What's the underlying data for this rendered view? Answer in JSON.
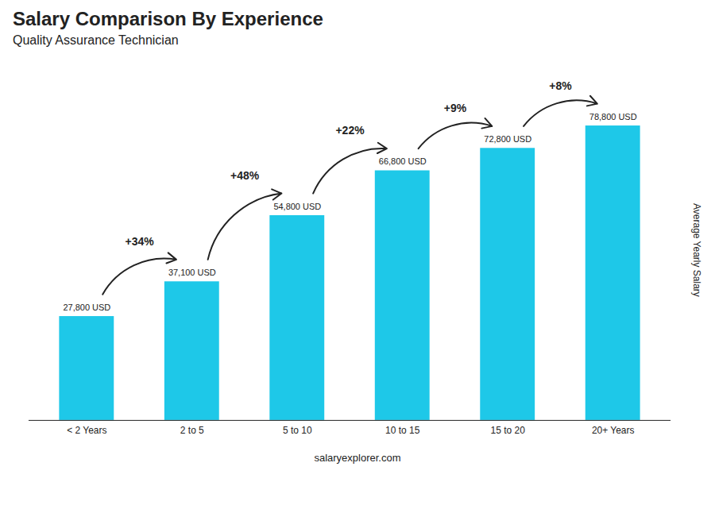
{
  "chart_data": {
    "type": "bar",
    "title": "Salary Comparison By Experience",
    "subtitle": "Quality Assurance Technician",
    "categories": [
      "< 2 Years",
      "2 to 5",
      "5 to 10",
      "10 to 15",
      "15 to 20",
      "20+ Years"
    ],
    "values": [
      27800,
      37100,
      54800,
      66800,
      72800,
      78800
    ],
    "value_labels": [
      "27,800 USD",
      "37,100 USD",
      "54,800 USD",
      "66,800 USD",
      "72,800 USD",
      "78,800 USD"
    ],
    "data_labels": true,
    "annotations": [
      "+34%",
      "+48%",
      "+22%",
      "+9%",
      "+8%"
    ],
    "ylabel": "Average Yearly Salary",
    "caption": "salaryexplorer.com",
    "color": "#1EC8E8",
    "ylim": [
      0,
      92000
    ],
    "tick_labels": "x",
    "grid": false
  }
}
